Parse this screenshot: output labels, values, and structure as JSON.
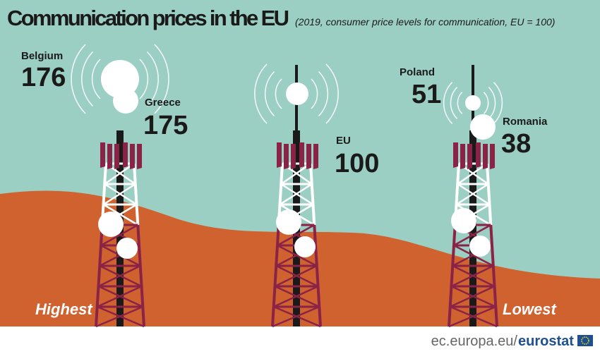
{
  "header": {
    "title": "Communication prices in the EU",
    "subtitle": "(2019, consumer price levels for communication, EU = 100)"
  },
  "items": [
    {
      "name": "Belgium",
      "value": "176"
    },
    {
      "name": "Greece",
      "value": "175"
    },
    {
      "name": "EU",
      "value": "100"
    },
    {
      "name": "Poland",
      "value": "51"
    },
    {
      "name": "Romania",
      "value": "38"
    }
  ],
  "labels": {
    "highest": "Highest",
    "lowest": "Lowest"
  },
  "footer": {
    "site": "ec.europa.eu/",
    "brand": "eurostat"
  }
}
